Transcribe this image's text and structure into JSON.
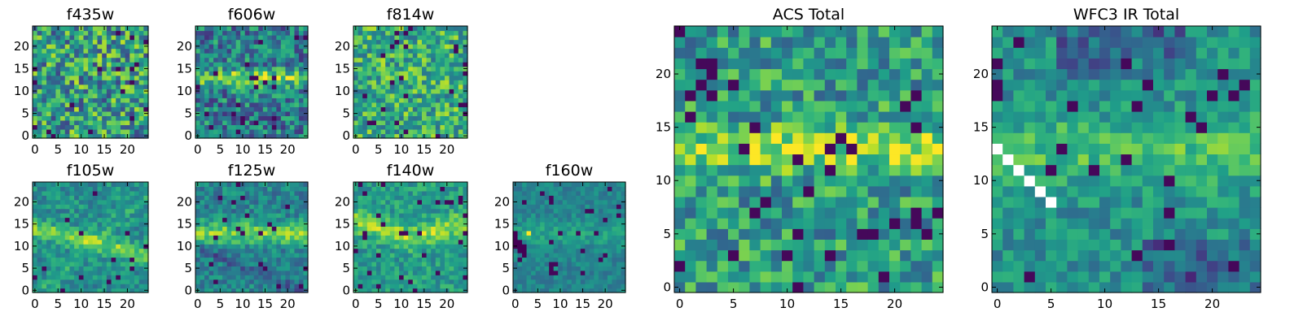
{
  "chart_data": [
    {
      "type": "heatmap",
      "title": "f435w",
      "xlim": [
        0,
        24
      ],
      "ylim": [
        0,
        24
      ],
      "xticks": [
        "0",
        "5",
        "10",
        "15",
        "20"
      ],
      "yticks": [
        "0",
        "5",
        "10",
        "15",
        "20"
      ],
      "colormap": "viridis",
      "grid": false
    },
    {
      "type": "heatmap",
      "title": "f606w",
      "xlim": [
        0,
        24
      ],
      "ylim": [
        0,
        24
      ],
      "xticks": [
        "0",
        "5",
        "10",
        "15",
        "20"
      ],
      "yticks": [
        "0",
        "5",
        "10",
        "15",
        "20"
      ],
      "colormap": "viridis",
      "grid": false
    },
    {
      "type": "heatmap",
      "title": "f814w",
      "xlim": [
        0,
        24
      ],
      "ylim": [
        0,
        24
      ],
      "xticks": [
        "0",
        "5",
        "10",
        "15",
        "20"
      ],
      "yticks": [
        "0",
        "5",
        "10",
        "15",
        "20"
      ],
      "colormap": "viridis",
      "grid": false
    },
    {
      "type": "heatmap",
      "title": "f105w",
      "xlim": [
        0,
        24
      ],
      "ylim": [
        0,
        24
      ],
      "xticks": [
        "0",
        "5",
        "10",
        "15",
        "20"
      ],
      "yticks": [
        "0",
        "5",
        "10",
        "15",
        "20"
      ],
      "colormap": "viridis",
      "grid": false
    },
    {
      "type": "heatmap",
      "title": "f125w",
      "xlim": [
        0,
        24
      ],
      "ylim": [
        0,
        24
      ],
      "xticks": [
        "0",
        "5",
        "10",
        "15",
        "20"
      ],
      "yticks": [
        "0",
        "5",
        "10",
        "15",
        "20"
      ],
      "colormap": "viridis",
      "grid": false
    },
    {
      "type": "heatmap",
      "title": "f140w",
      "xlim": [
        0,
        24
      ],
      "ylim": [
        0,
        24
      ],
      "xticks": [
        "0",
        "5",
        "10",
        "15",
        "20"
      ],
      "yticks": [
        "0",
        "5",
        "10",
        "15",
        "20"
      ],
      "colormap": "viridis",
      "grid": false
    },
    {
      "type": "heatmap",
      "title": "f160w",
      "xlim": [
        0,
        24
      ],
      "ylim": [
        0,
        24
      ],
      "xticks": [
        "0",
        "5",
        "10",
        "15",
        "20"
      ],
      "yticks": [
        "0",
        "5",
        "10",
        "15",
        "20"
      ],
      "colormap": "viridis",
      "grid": false
    },
    {
      "type": "heatmap",
      "title": "ACS Total",
      "xlim": [
        0,
        24
      ],
      "ylim": [
        0,
        24
      ],
      "xticks": [
        "0",
        "5",
        "10",
        "15",
        "20"
      ],
      "yticks": [
        "0",
        "5",
        "10",
        "15",
        "20"
      ],
      "colormap": "viridis",
      "grid": false
    },
    {
      "type": "heatmap",
      "title": "WFC3 IR Total",
      "xlim": [
        0,
        24
      ],
      "ylim": [
        0,
        24
      ],
      "xticks": [
        "0",
        "5",
        "10",
        "15",
        "20"
      ],
      "yticks": [
        "0",
        "5",
        "10",
        "15",
        "20"
      ],
      "colormap": "viridis",
      "grid": false
    }
  ]
}
